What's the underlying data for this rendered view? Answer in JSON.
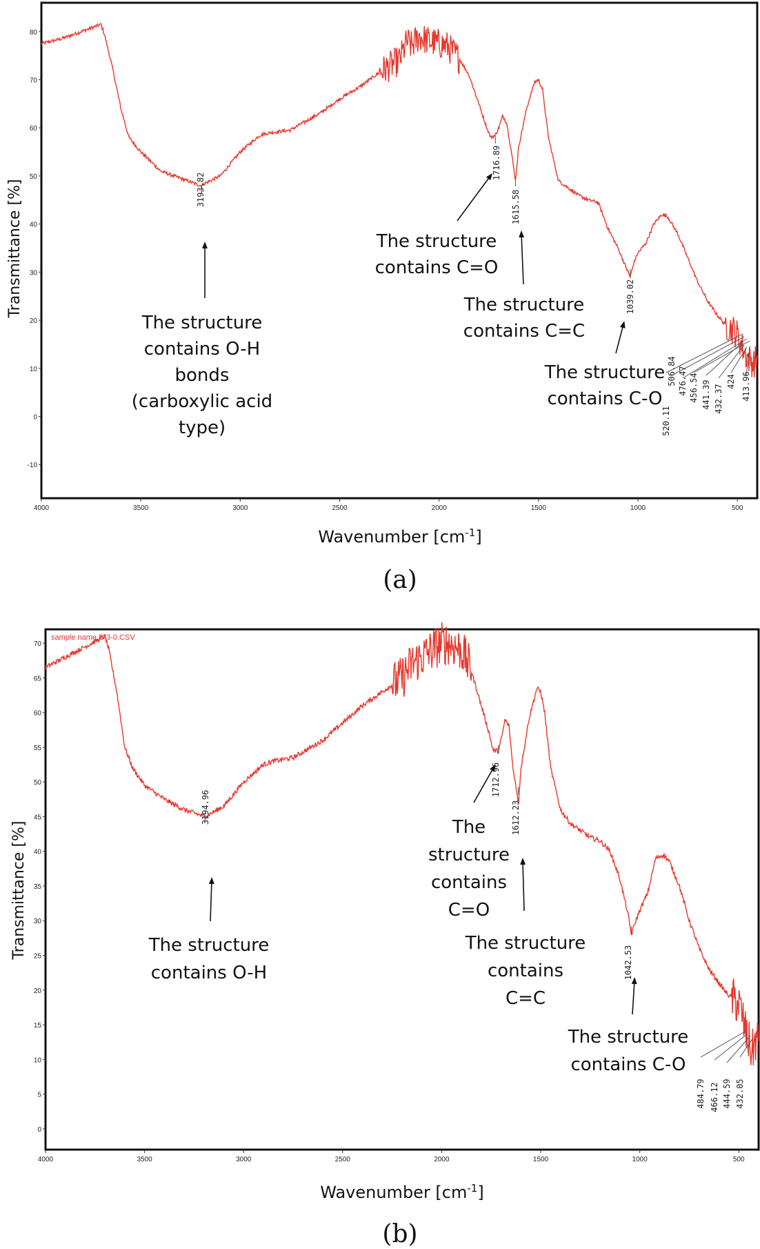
{
  "chart_data": [
    {
      "type": "line",
      "panel": "(a)",
      "xlabel": "Wavenumber [cm-1]",
      "ylabel": "Transmittance [%]",
      "xlim": [
        4000,
        400
      ],
      "ylim": [
        -17,
        86
      ],
      "xticks": [
        4000,
        3500,
        3000,
        2500,
        2000,
        1500,
        1000,
        500
      ],
      "xtick_labels": [
        "4000",
        "3500",
        "3000",
        "2500",
        "2000",
        "1500",
        "1000",
        "500"
      ],
      "yticks": [
        80,
        70,
        60,
        50,
        40,
        30,
        20,
        10,
        0,
        -10
      ],
      "ytick_labels": [
        "80",
        "70",
        "60",
        "50",
        "40",
        "30",
        "20",
        "10",
        "0",
        "-10"
      ],
      "series": [
        {
          "name": "spectrum",
          "color": "#e8372c",
          "x": [
            4000,
            3900,
            3800,
            3700,
            3680,
            3640,
            3600,
            3560,
            3500,
            3400,
            3300,
            3200,
            3100,
            3000,
            2900,
            2850,
            2750,
            2600,
            2500,
            2400,
            2300,
            2200,
            2160,
            2140,
            2100,
            2050,
            2000,
            1960,
            1900,
            1850,
            1800,
            1760,
            1740,
            1716.89,
            1700,
            1680,
            1660,
            1640,
            1615.58,
            1600,
            1560,
            1520,
            1500,
            1480,
            1450,
            1400,
            1350,
            1300,
            1250,
            1200,
            1150,
            1100,
            1060,
            1039.02,
            1020,
            1000,
            960,
            920,
            880,
            850,
            800,
            750,
            700,
            650,
            600,
            560,
            520,
            500,
            480,
            460,
            440,
            420,
            400
          ],
          "y": [
            77.5,
            78.5,
            80,
            81.5,
            79,
            72,
            64,
            58,
            55,
            51,
            49.5,
            48,
            50,
            55,
            58.5,
            59,
            59.5,
            63,
            66,
            68.5,
            71.5,
            74,
            78,
            77,
            79,
            78,
            77.5,
            77,
            74.5,
            71,
            65,
            60,
            58,
            58.5,
            60,
            62.5,
            61,
            56,
            49,
            56,
            64,
            69.5,
            70,
            68,
            58,
            49,
            47.5,
            46,
            45,
            44.5,
            39,
            35,
            31,
            29,
            32,
            34,
            36,
            40,
            42,
            41.5,
            38,
            33,
            28,
            24,
            21,
            19,
            18,
            17,
            15,
            13,
            12,
            11,
            12
          ],
          "noise_ranges": [
            [
              2300,
              1900
            ],
            [
              560,
              400
            ]
          ]
        }
      ],
      "peak_labels": [
        "3193.82",
        "1716.89",
        "1615.58",
        "1039.02",
        "520.11",
        "506.84",
        "476.47",
        "456.54",
        "441.39",
        "432.37",
        "424",
        "413.96"
      ],
      "annotations": {
        "oh": [
          "The structure",
          "contains O-H",
          "bonds",
          "(carboxylic acid",
          "type)"
        ],
        "co_double": [
          "The structure",
          "contains C=O"
        ],
        "cc_double": [
          "The structure",
          "contains C=C"
        ],
        "co_single": [
          "The structure",
          "contains C-O"
        ]
      },
      "caption": "(a)"
    },
    {
      "type": "line",
      "panel": "(b)",
      "xlabel": "Wavenumber [cm-1]",
      "ylabel": "Transmittance [%]",
      "sample_name": "sample name B-3-0.CSV",
      "xlim": [
        4000,
        400
      ],
      "ylim": [
        -3,
        72
      ],
      "xticks": [
        4000,
        3500,
        3000,
        2500,
        2000,
        1500,
        1000,
        500
      ],
      "xtick_labels": [
        "4000",
        "3500",
        "3000",
        "2500",
        "2000",
        "1500",
        "1000",
        "500"
      ],
      "yticks": [
        70,
        65,
        60,
        55,
        50,
        45,
        40,
        35,
        30,
        25,
        20,
        15,
        10,
        5,
        0
      ],
      "ytick_labels": [
        "70",
        "65",
        "60",
        "55",
        "50",
        "45",
        "40",
        "35",
        "30",
        "25",
        "20",
        "15",
        "10",
        "5",
        "0"
      ],
      "series": [
        {
          "name": "spectrum",
          "color": "#e8372c",
          "x": [
            4000,
            3900,
            3800,
            3700,
            3680,
            3640,
            3600,
            3560,
            3500,
            3400,
            3300,
            3194.96,
            3100,
            3000,
            2900,
            2850,
            2750,
            2600,
            2500,
            2400,
            2300,
            2200,
            2150,
            2100,
            2050,
            2000,
            1960,
            1900,
            1850,
            1800,
            1760,
            1740,
            1712.96,
            1700,
            1680,
            1660,
            1640,
            1612.23,
            1600,
            1560,
            1520,
            1500,
            1480,
            1450,
            1400,
            1350,
            1300,
            1250,
            1200,
            1150,
            1100,
            1060,
            1042.53,
            1020,
            1000,
            960,
            920,
            880,
            850,
            800,
            750,
            700,
            650,
            600,
            560,
            520,
            500,
            484.79,
            466.12,
            444.59,
            432.05,
            420,
            400
          ],
          "y": [
            66.5,
            68,
            69.5,
            71,
            69,
            63,
            55,
            52,
            49.5,
            47.5,
            46,
            45,
            46.5,
            50,
            52.5,
            53,
            53.5,
            56,
            58.5,
            61,
            63,
            65,
            67,
            68,
            69,
            70,
            70,
            69,
            66,
            61,
            57,
            54.5,
            54.5,
            56,
            59,
            58,
            52,
            47,
            52,
            59,
            63.5,
            63,
            60,
            52,
            46,
            44,
            43,
            42,
            41.5,
            40,
            36,
            31,
            28,
            30,
            31.5,
            34,
            39,
            39.5,
            38.5,
            35,
            30,
            26,
            23,
            21,
            19.5,
            18.5,
            18,
            16.5,
            14,
            12,
            11,
            12.5,
            13
          ],
          "noise_ranges": [
            [
              2250,
              1850
            ],
            [
              540,
              400
            ]
          ]
        }
      ],
      "peak_labels": [
        "3194.96",
        "1712.96",
        "1612.23",
        "1042.53",
        "484.79",
        "466.12",
        "444.59",
        "432.05"
      ],
      "annotations": {
        "oh": [
          "The structure",
          "contains O-H"
        ],
        "co_double": [
          "The",
          "structure",
          "contains",
          "C=O"
        ],
        "cc_double": [
          "The structure",
          "contains",
          "C=C"
        ],
        "co_single": [
          "The structure",
          "contains C-O"
        ]
      },
      "caption": "(b)"
    }
  ]
}
